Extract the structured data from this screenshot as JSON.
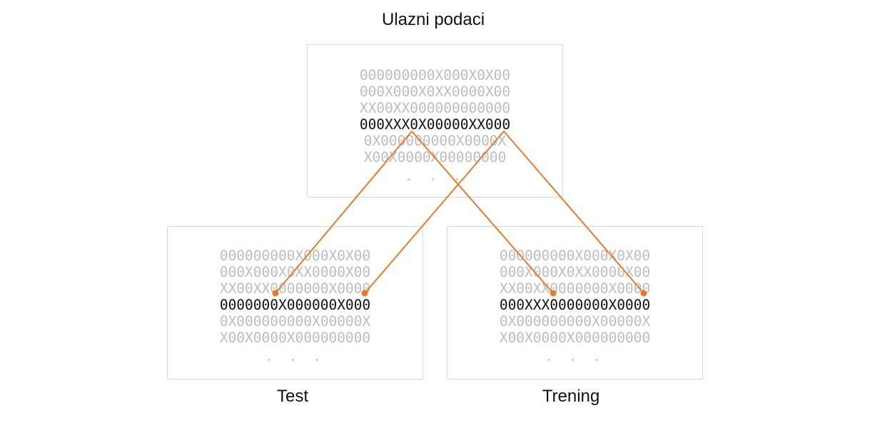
{
  "titles": {
    "input": "Ulazni podaci",
    "test": "Test",
    "train": "Trening"
  },
  "panels": {
    "input": {
      "rows": [
        "000000000X000X0X00",
        "000X000X0XX0000X00",
        "XX00XX000000000000",
        "000XXX0X00000XX000",
        "0X000000000X0000X",
        "X00X0000X00000000"
      ],
      "highlight_row": 3,
      "ellipsis": ". . ."
    },
    "test": {
      "rows": [
        "000000000X000X0X00",
        "000X000X0XX0000X00",
        "XX00XX0000000X0000",
        "0000000X000000X000",
        "0X000000000X00000X",
        "X00X0000X000000000"
      ],
      "highlight_row": 3,
      "ellipsis": ". . ."
    },
    "train": {
      "rows": [
        "000000000X000X0X00",
        "000X000X0XX0000X00",
        "XX00XX0000000X0000",
        "000XXX0000000X0000",
        "0X000000000X00000X",
        "X00X0000X000000000"
      ],
      "highlight_row": 3,
      "ellipsis": ". . ."
    }
  },
  "colors": {
    "accent": "#e8792b",
    "highlight_text": "#111111",
    "dim_text": "#bdbdbd",
    "panel_border": "#d9d9d9"
  }
}
